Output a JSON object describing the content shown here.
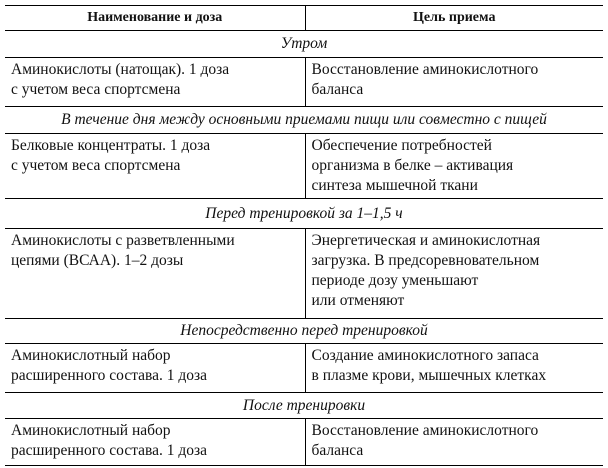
{
  "header": [
    "Наименование и доза",
    "Цель приема"
  ],
  "sections": [
    {
      "title": "Утром",
      "rows": [
        [
          [
            "Аминокислоты (натощак). 1 доза",
            "с учетом веса спортсмена"
          ],
          [
            "Восстановление аминокислотного",
            "баланса"
          ]
        ]
      ]
    },
    {
      "title": "В течение дня между основными приемами пищи или совместно с пищей",
      "rows": [
        [
          [
            "Белковые концентраты. 1 доза",
            "с учетом веса спортсмена"
          ],
          [
            "Обеспечение потребностей",
            "организма в белке – активация",
            "синтеза мышечной ткани"
          ]
        ]
      ]
    },
    {
      "title": "Перед тренировкой за 1–1,5 ч",
      "rows": [
        [
          [
            "Аминокислоты с разветвленными",
            "цепями (ВСАА). 1–2 дозы"
          ],
          [
            "Энергетическая и аминокислотная",
            "загрузка. В предсоревновательном",
            "периоде дозу уменьшают",
            "или отменяют"
          ]
        ]
      ]
    },
    {
      "title": "Непосредственно перед тренировкой",
      "rows": [
        [
          [
            "Аминокислотный набор",
            "расширенного состава. 1 доза"
          ],
          [
            "Создание аминокислотного запаса",
            "в плазме крови, мышечных клетках"
          ]
        ]
      ]
    },
    {
      "title": "После тренировки",
      "rows": [
        [
          [
            "Аминокислотный набор",
            "расширенного состава. 1 доза"
          ],
          [
            "Восстановление аминокислотного",
            "баланса"
          ]
        ]
      ]
    }
  ]
}
